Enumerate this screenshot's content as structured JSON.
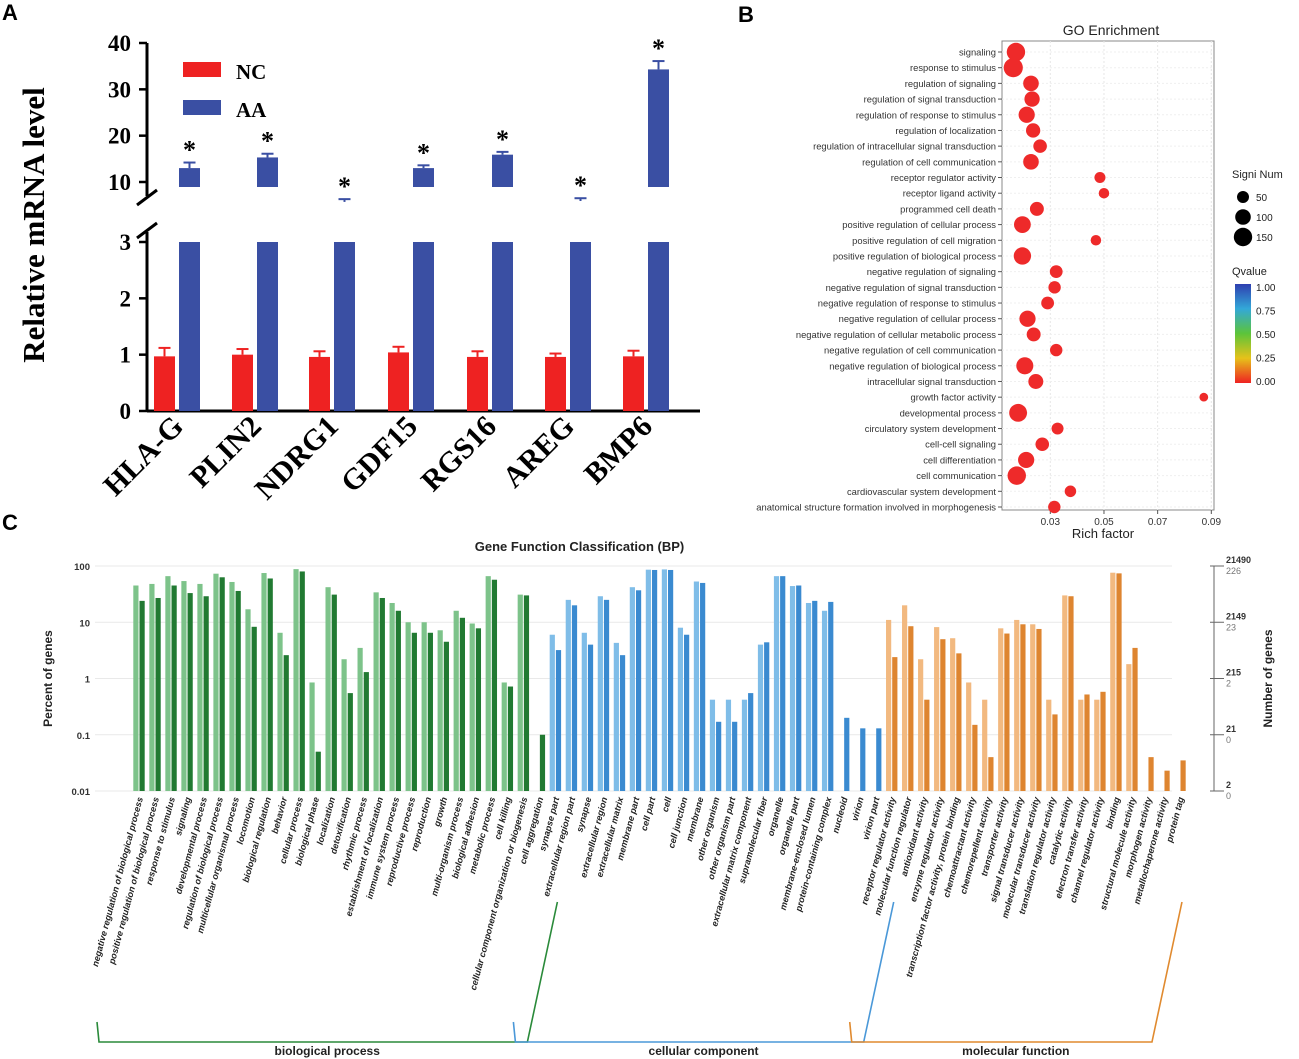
{
  "panels": {
    "a": "A",
    "b": "B",
    "c": "C"
  },
  "colors": {
    "nc": "#ee2222",
    "aa": "#3a4fa3",
    "go_point": "#ee2a2a",
    "bp": "#2e8b3a",
    "cc": "#3d8fd6",
    "mf": "#e08a2f"
  },
  "chart_data": [
    {
      "type": "bar",
      "id": "panel-a",
      "title": "",
      "ylabel": "Relative mRNA level",
      "categories": [
        "HLA-G",
        "PLIN2",
        "NDRG1",
        "GDF15",
        "RGS16",
        "AREG",
        "BMP6"
      ],
      "series": [
        {
          "name": "NC",
          "values": [
            0.97,
            1.0,
            0.96,
            1.04,
            0.96,
            0.96,
            0.97
          ],
          "errors": [
            0.15,
            0.1,
            0.1,
            0.1,
            0.1,
            0.06,
            0.1
          ]
        },
        {
          "name": "AA",
          "values": [
            13,
            15.3,
            5.7,
            13,
            15.9,
            5.9,
            34.3
          ],
          "errors": [
            1.2,
            0.8,
            0.6,
            0.6,
            0.6,
            0.6,
            1.8
          ]
        }
      ],
      "significance": [
        "*",
        "*",
        "*",
        "*",
        "*",
        "*",
        "*"
      ],
      "axis_break": {
        "lower_range": [
          0,
          3
        ],
        "upper_range": [
          3,
          40
        ]
      },
      "lower_ticks": [
        "0",
        "1",
        "2",
        "3"
      ],
      "upper_ticks": [
        "10",
        "20",
        "30",
        "40"
      ],
      "legend_position": "top-left"
    },
    {
      "type": "scatter",
      "id": "panel-b",
      "title": "GO Enrichment",
      "xlabel": "Rich factor",
      "xlim": [
        0.012,
        0.091
      ],
      "xticks": [
        "0.03",
        "0.05",
        "0.07",
        "0.09"
      ],
      "terms": [
        {
          "term": "signaling",
          "rich": 0.0172,
          "num": 150,
          "q": 0.0
        },
        {
          "term": "response to stimulus",
          "rich": 0.0162,
          "num": 165,
          "q": 0.0
        },
        {
          "term": "regulation of signaling",
          "rich": 0.0228,
          "num": 100,
          "q": 0.0
        },
        {
          "term": "regulation of signal transduction",
          "rich": 0.0232,
          "num": 95,
          "q": 0.0
        },
        {
          "term": "regulation of response to stimulus",
          "rich": 0.0212,
          "num": 110,
          "q": 0.0
        },
        {
          "term": "regulation of localization",
          "rich": 0.0236,
          "num": 80,
          "q": 0.0
        },
        {
          "term": "regulation of intracellular signal transduction",
          "rich": 0.0262,
          "num": 70,
          "q": 0.0
        },
        {
          "term": "regulation of cell communication",
          "rich": 0.0228,
          "num": 100,
          "q": 0.0
        },
        {
          "term": "receptor regulator activity",
          "rich": 0.0485,
          "num": 40,
          "q": 0.0
        },
        {
          "term": "receptor ligand activity",
          "rich": 0.05,
          "num": 35,
          "q": 0.0
        },
        {
          "term": "programmed cell death",
          "rich": 0.025,
          "num": 75,
          "q": 0.0
        },
        {
          "term": "positive regulation of cellular process",
          "rich": 0.0196,
          "num": 120,
          "q": 0.0
        },
        {
          "term": "positive regulation of cell migration",
          "rich": 0.047,
          "num": 35,
          "q": 0.0
        },
        {
          "term": "positive regulation of biological process",
          "rich": 0.0196,
          "num": 130,
          "q": 0.0
        },
        {
          "term": "negative regulation of signaling",
          "rich": 0.0322,
          "num": 60,
          "q": 0.0
        },
        {
          "term": "negative regulation of signal transduction",
          "rich": 0.0316,
          "num": 55,
          "q": 0.0
        },
        {
          "term": "negative regulation of response to stimulus",
          "rich": 0.029,
          "num": 60,
          "q": 0.0
        },
        {
          "term": "negative regulation of cellular process",
          "rich": 0.0215,
          "num": 110,
          "q": 0.0
        },
        {
          "term": "negative regulation of cellular metabolic process",
          "rich": 0.0238,
          "num": 75,
          "q": 0.0
        },
        {
          "term": "negative regulation of cell communication",
          "rich": 0.0322,
          "num": 55,
          "q": 0.0
        },
        {
          "term": "negative regulation of biological process",
          "rich": 0.0205,
          "num": 125,
          "q": 0.0
        },
        {
          "term": "intracellular signal transduction",
          "rich": 0.0246,
          "num": 90,
          "q": 0.0
        },
        {
          "term": "growth factor activity",
          "rich": 0.0872,
          "num": 20,
          "q": 0.0
        },
        {
          "term": "developmental process",
          "rich": 0.018,
          "num": 140,
          "q": 0.0
        },
        {
          "term": "circulatory system development",
          "rich": 0.0327,
          "num": 50,
          "q": 0.0
        },
        {
          "term": "cell-cell signaling",
          "rich": 0.027,
          "num": 70,
          "q": 0.0
        },
        {
          "term": "cell differentiation",
          "rich": 0.021,
          "num": 110,
          "q": 0.0
        },
        {
          "term": "cell communication",
          "rich": 0.0175,
          "num": 150,
          "q": 0.0
        },
        {
          "term": "cardiovascular system development",
          "rich": 0.0375,
          "num": 45,
          "q": 0.0
        },
        {
          "term": "anatomical structure formation involved in morphogenesis",
          "rich": 0.0315,
          "num": 55,
          "q": 0.0
        }
      ],
      "size_legend": {
        "title": "Signi Num",
        "labels": [
          "50",
          "100",
          "150"
        ]
      },
      "color_legend": {
        "title": "Qvalue",
        "labels": [
          "1.00",
          "0.75",
          "0.50",
          "0.25",
          "0.00"
        ]
      }
    },
    {
      "type": "bar",
      "id": "panel-c",
      "title": "Gene Function Classification (BP)",
      "ylabel": "Percent of genes",
      "ylabel_right": "Number of genes",
      "yscale": "log",
      "ylim": [
        0.01,
        100
      ],
      "left_ticks": [
        "100",
        "10",
        "1",
        "0.1",
        "0.01"
      ],
      "right_ticks": [
        {
          "top": "21490",
          "bottom": "226"
        },
        {
          "top": "2149",
          "bottom": "23"
        },
        {
          "top": "215",
          "bottom": "2"
        },
        {
          "top": "21",
          "bottom": "0"
        },
        {
          "top": "2",
          "bottom": "0"
        }
      ],
      "groups": [
        "biological process",
        "cellular component",
        "molecular function"
      ],
      "categories": [
        {
          "label": "negative regulation of biological process",
          "group": 0,
          "light": 45,
          "dark": 24
        },
        {
          "label": "positive regulation of biological process",
          "group": 0,
          "light": 48,
          "dark": 27
        },
        {
          "label": "response to stimulus",
          "group": 0,
          "light": 66,
          "dark": 45
        },
        {
          "label": "signaling",
          "group": 0,
          "light": 54,
          "dark": 33
        },
        {
          "label": "developmental process",
          "group": 0,
          "light": 48,
          "dark": 29
        },
        {
          "label": "regulation of biological process",
          "group": 0,
          "light": 73,
          "dark": 63
        },
        {
          "label": "multicellular organismal process",
          "group": 0,
          "light": 52,
          "dark": 36
        },
        {
          "label": "locomotion",
          "group": 0,
          "light": 17,
          "dark": 8.3
        },
        {
          "label": "biological regulation",
          "group": 0,
          "light": 75,
          "dark": 60
        },
        {
          "label": "behavior",
          "group": 0,
          "light": 6.5,
          "dark": 2.6
        },
        {
          "label": "cellular process",
          "group": 0,
          "light": 88,
          "dark": 80
        },
        {
          "label": "biological phase",
          "group": 0,
          "light": 0.85,
          "dark": 0.05
        },
        {
          "label": "localization",
          "group": 0,
          "light": 42,
          "dark": 31
        },
        {
          "label": "detoxification",
          "group": 0,
          "light": 2.2,
          "dark": 0.55
        },
        {
          "label": "rhythmic process",
          "group": 0,
          "light": 3.5,
          "dark": 1.3
        },
        {
          "label": "establishment of localization",
          "group": 0,
          "light": 34,
          "dark": 27
        },
        {
          "label": "immune system process",
          "group": 0,
          "light": 22,
          "dark": 16
        },
        {
          "label": "reproductive process",
          "group": 0,
          "light": 10,
          "dark": 6.5
        },
        {
          "label": "reproduction",
          "group": 0,
          "light": 10,
          "dark": 6.5
        },
        {
          "label": "growth",
          "group": 0,
          "light": 7.2,
          "dark": 4.5
        },
        {
          "label": "multi-organism process",
          "group": 0,
          "light": 16,
          "dark": 12
        },
        {
          "label": "biological adhesion",
          "group": 0,
          "light": 9.5,
          "dark": 7.8
        },
        {
          "label": "metabolic process",
          "group": 0,
          "light": 66,
          "dark": 57
        },
        {
          "label": "cell killing",
          "group": 0,
          "light": 0.85,
          "dark": 0.72
        },
        {
          "label": "cellular component organization or biogenesis",
          "group": 0,
          "light": 31,
          "dark": 30
        },
        {
          "label": "cell aggregation",
          "group": 0,
          "light": 0,
          "dark": 0.1
        },
        {
          "label": "synapse part",
          "group": 1,
          "light": 6,
          "dark": 3.2
        },
        {
          "label": "extracellular region part",
          "group": 1,
          "light": 25,
          "dark": 20
        },
        {
          "label": "synapse",
          "group": 1,
          "light": 6.5,
          "dark": 4
        },
        {
          "label": "extracellular region",
          "group": 1,
          "light": 29,
          "dark": 25
        },
        {
          "label": "extracellular matrix",
          "group": 1,
          "light": 4.3,
          "dark": 2.6
        },
        {
          "label": "membrane part",
          "group": 1,
          "light": 42,
          "dark": 37
        },
        {
          "label": "cell part",
          "group": 1,
          "light": 86,
          "dark": 85
        },
        {
          "label": "cell",
          "group": 1,
          "light": 87,
          "dark": 85
        },
        {
          "label": "cell junction",
          "group": 1,
          "light": 8,
          "dark": 6
        },
        {
          "label": "membrane",
          "group": 1,
          "light": 53,
          "dark": 50
        },
        {
          "label": "other organism",
          "group": 1,
          "light": 0.42,
          "dark": 0.17
        },
        {
          "label": "other organism part",
          "group": 1,
          "light": 0.42,
          "dark": 0.17
        },
        {
          "label": "extracellular matrix component",
          "group": 1,
          "light": 0.42,
          "dark": 0.55
        },
        {
          "label": "supramolecular fiber",
          "group": 1,
          "light": 4,
          "dark": 4.4
        },
        {
          "label": "organelle",
          "group": 1,
          "light": 66,
          "dark": 66
        },
        {
          "label": "organelle part",
          "group": 1,
          "light": 44,
          "dark": 45
        },
        {
          "label": "membrane-enclosed lumen",
          "group": 1,
          "light": 22,
          "dark": 24
        },
        {
          "label": "protein-containing complex",
          "group": 1,
          "light": 16,
          "dark": 23
        },
        {
          "label": "nucleoid",
          "group": 1,
          "light": 0,
          "dark": 0.2
        },
        {
          "label": "virion",
          "group": 1,
          "light": 0,
          "dark": 0.13
        },
        {
          "label": "virion part",
          "group": 1,
          "light": 0,
          "dark": 0.13
        },
        {
          "label": "receptor regulator activity",
          "group": 2,
          "light": 11,
          "dark": 2.4
        },
        {
          "label": "molecular function regulator",
          "group": 2,
          "light": 20,
          "dark": 8.5
        },
        {
          "label": "antioxidant activity",
          "group": 2,
          "light": 2.2,
          "dark": 0.42
        },
        {
          "label": "enzyme regulator activity",
          "group": 2,
          "light": 8.2,
          "dark": 5
        },
        {
          "label": "transcription factor activity, protein binding",
          "group": 2,
          "light": 5.2,
          "dark": 2.8
        },
        {
          "label": "chemoattractant activity",
          "group": 2,
          "light": 0.85,
          "dark": 0.15
        },
        {
          "label": "chemorepellent activity",
          "group": 2,
          "light": 0.42,
          "dark": 0.04
        },
        {
          "label": "transporter activity",
          "group": 2,
          "light": 7.8,
          "dark": 6.3
        },
        {
          "label": "signal transducer activity",
          "group": 2,
          "light": 11,
          "dark": 9.2
        },
        {
          "label": "molecular transducer activity",
          "group": 2,
          "light": 9.2,
          "dark": 7.6
        },
        {
          "label": "translation regulator activity",
          "group": 2,
          "light": 0.42,
          "dark": 0.23
        },
        {
          "label": "catalytic activity",
          "group": 2,
          "light": 30,
          "dark": 29
        },
        {
          "label": "electron transfer activity",
          "group": 2,
          "light": 0.42,
          "dark": 0.52
        },
        {
          "label": "channel regulator activity",
          "group": 2,
          "light": 0.42,
          "dark": 0.58
        },
        {
          "label": "binding",
          "group": 2,
          "light": 76,
          "dark": 74
        },
        {
          "label": "structural molecule activity",
          "group": 2,
          "light": 1.8,
          "dark": 3.5
        },
        {
          "label": "morphogen activity",
          "group": 2,
          "light": 0,
          "dark": 0.04
        },
        {
          "label": "metallochaperone activity",
          "group": 2,
          "light": 0,
          "dark": 0.023
        },
        {
          "label": "protein tag",
          "group": 2,
          "light": 0,
          "dark": 0.035
        }
      ]
    }
  ]
}
